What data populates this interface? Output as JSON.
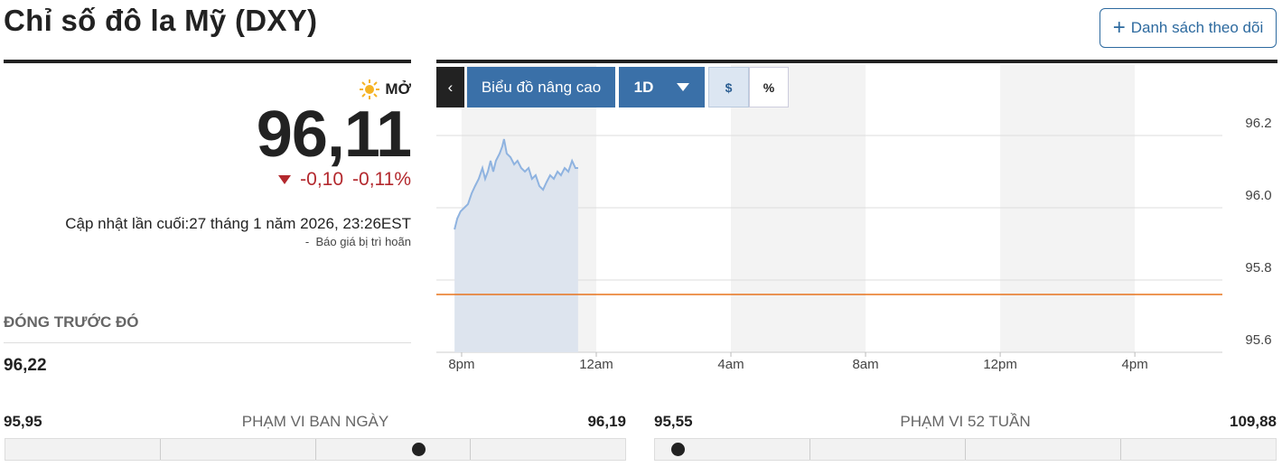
{
  "header": {
    "title": "Chỉ số đô la Mỹ (DXY)",
    "watchlist_button": "Danh sách theo dõi"
  },
  "quote": {
    "market_status": "MỞ",
    "price": {
      "value": 96.11,
      "label": "96,11"
    },
    "change": "-0,10",
    "change_percent": "-0,11%",
    "last_updated": "Cập nhật lần cuối:27 tháng 1 năm 2026, 23:26EST",
    "delay_note": "-  Báo giá bị trì hoãn"
  },
  "previous_close": {
    "label": "ĐÓNG TRƯỚC ĐÓ",
    "value": "96,22"
  },
  "day_range": {
    "label": "PHẠM VI BAN NGÀY",
    "low": {
      "value": 95.95,
      "label": "95,95"
    },
    "high": {
      "value": 96.19,
      "label": "96,19"
    }
  },
  "week52_range": {
    "label": "PHẠM VI 52 TUẦN",
    "low": {
      "value": 95.55,
      "label": "95,55"
    },
    "high": {
      "value": 109.88,
      "label": "109,88"
    }
  },
  "toolbar": {
    "advanced_chart": "Biểu đồ nâng cao",
    "interval": "1D",
    "currency": "$",
    "percent": "%"
  },
  "chart_data": {
    "type": "line",
    "color": "#8fb3e0",
    "fill": "#dde4ee",
    "x": [
      -0.21,
      -0.13,
      -0.03,
      0.08,
      0.19,
      0.3,
      0.4,
      0.51,
      0.62,
      0.7,
      0.78,
      0.86,
      0.94,
      1.02,
      1.13,
      1.21,
      1.26,
      1.34,
      1.45,
      1.56,
      1.66,
      1.77,
      1.88,
      1.99,
      2.09,
      2.2,
      2.31,
      2.42,
      2.52,
      2.63,
      2.74,
      2.85,
      2.95,
      3.06,
      3.17,
      3.28,
      3.38,
      3.46
    ],
    "values": [
      95.94,
      95.97,
      95.99,
      96.0,
      96.01,
      96.04,
      96.06,
      96.08,
      96.11,
      96.08,
      96.1,
      96.13,
      96.1,
      96.13,
      96.15,
      96.17,
      96.19,
      96.15,
      96.14,
      96.12,
      96.13,
      96.11,
      96.1,
      96.11,
      96.08,
      96.09,
      96.06,
      96.05,
      96.07,
      96.09,
      96.08,
      96.1,
      96.09,
      96.11,
      96.1,
      96.13,
      96.11,
      96.11
    ],
    "xlim": [
      -0.75,
      22.6
    ],
    "xticks": [
      {
        "value": 0,
        "label": "8pm"
      },
      {
        "value": 4,
        "label": "12am"
      },
      {
        "value": 8,
        "label": "4am"
      },
      {
        "value": 12,
        "label": "8am"
      },
      {
        "value": 16,
        "label": "12pm"
      },
      {
        "value": 20,
        "label": "4pm"
      }
    ],
    "ylim": [
      95.6,
      96.395
    ],
    "yticks": [
      95.6,
      95.8,
      {
        "value": 96,
        "label": "96.0"
      },
      96.2
    ],
    "grid": true,
    "reference_line": {
      "value": 95.76,
      "color": "#e8731c"
    }
  }
}
